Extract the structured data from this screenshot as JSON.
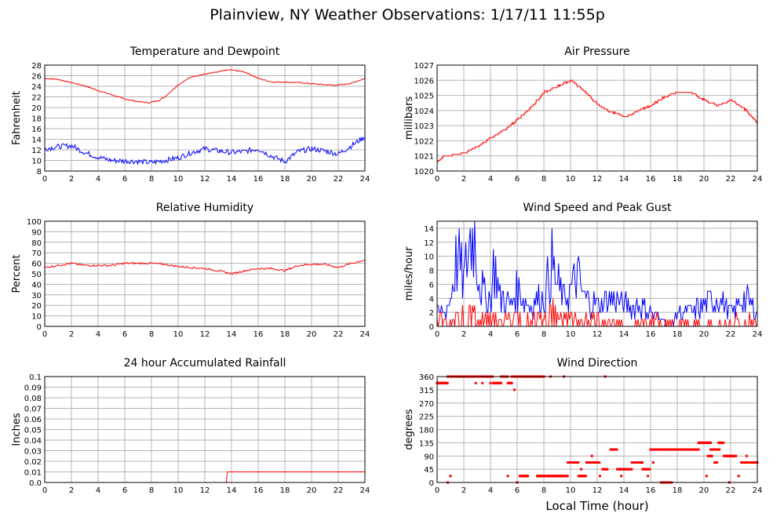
{
  "title": "Plainview, NY Weather Observations: 1/17/11 11:55p",
  "xlabel_bottom": "Local Time (hour)",
  "colors": {
    "red": "#ff0000",
    "blue": "#0000ff",
    "grid": "#b4b4b4",
    "frame": "#000000"
  },
  "chart_data": [
    {
      "id": "temp",
      "type": "line",
      "title": "Temperature and Dewpoint",
      "ylabel": "Fahrenheit",
      "xlim": [
        0,
        24
      ],
      "ylim": [
        8,
        28
      ],
      "xticks": [
        0,
        2,
        4,
        6,
        8,
        10,
        12,
        14,
        16,
        18,
        20,
        22,
        24
      ],
      "yticks": [
        8,
        10,
        12,
        14,
        16,
        18,
        20,
        22,
        24,
        26,
        28
      ],
      "series": [
        {
          "color": "#ff0000",
          "jitter": 0.1,
          "x": [
            0,
            1,
            2,
            3,
            4,
            5,
            6,
            7,
            7.8,
            8.5,
            9,
            10,
            11,
            12,
            13,
            13.5,
            14,
            15,
            16,
            17,
            18,
            19,
            20,
            21,
            22,
            23,
            24
          ],
          "y": [
            25.5,
            25.3,
            24.7,
            24.1,
            23.2,
            22.4,
            21.6,
            21.1,
            20.9,
            21.3,
            22.0,
            24.3,
            25.8,
            26.3,
            26.7,
            27.0,
            27.1,
            26.7,
            25.5,
            24.8,
            24.8,
            24.7,
            24.5,
            24.3,
            24.2,
            24.6,
            25.5
          ]
        },
        {
          "color": "#0000ff",
          "jitter": 0.5,
          "x": [
            0,
            1,
            2,
            3,
            4,
            5,
            6,
            7,
            8,
            9,
            10,
            11,
            12,
            13,
            14,
            15,
            16,
            17,
            18,
            19,
            20,
            21,
            22,
            23,
            24
          ],
          "y": [
            12.2,
            12.6,
            12.8,
            11.5,
            10.6,
            10.0,
            9.9,
            9.8,
            9.6,
            10.0,
            10.5,
            11.5,
            12.2,
            11.8,
            11.5,
            11.7,
            12.2,
            10.8,
            9.8,
            11.7,
            12.2,
            11.8,
            11.2,
            12.8,
            14.5
          ]
        }
      ]
    },
    {
      "id": "pressure",
      "type": "line",
      "title": "Air Pressure",
      "ylabel": "millibars",
      "xlim": [
        0,
        24
      ],
      "ylim": [
        1020,
        1027
      ],
      "xticks": [
        0,
        2,
        4,
        6,
        8,
        10,
        12,
        14,
        16,
        18,
        20,
        22,
        24
      ],
      "yticks": [
        1020,
        1021,
        1022,
        1023,
        1024,
        1025,
        1026,
        1027
      ],
      "series": [
        {
          "color": "#ff0000",
          "step": 0.1,
          "jitter": 0.05,
          "x": [
            0,
            0.5,
            1,
            2,
            3,
            4,
            5,
            6,
            7,
            8,
            9,
            10,
            11,
            12,
            13,
            14,
            14.5,
            15,
            16,
            17,
            18,
            19,
            20,
            21,
            22,
            23,
            24
          ],
          "y": [
            1020.6,
            1021.0,
            1021.0,
            1021.2,
            1021.6,
            1022.2,
            1022.7,
            1023.4,
            1024.2,
            1025.2,
            1025.6,
            1026.0,
            1025.3,
            1024.4,
            1023.9,
            1023.6,
            1023.7,
            1024.0,
            1024.3,
            1024.9,
            1025.2,
            1025.2,
            1024.7,
            1024.3,
            1024.7,
            1024.1,
            1023.2
          ]
        }
      ]
    },
    {
      "id": "humidity",
      "type": "line",
      "title": "Relative Humidity",
      "ylabel": "Percent",
      "xlim": [
        0,
        24
      ],
      "ylim": [
        0,
        100
      ],
      "xticks": [
        0,
        2,
        4,
        6,
        8,
        10,
        12,
        14,
        16,
        18,
        20,
        22,
        24
      ],
      "yticks": [
        0,
        10,
        20,
        30,
        40,
        50,
        60,
        70,
        80,
        90,
        100
      ],
      "series": [
        {
          "color": "#ff0000",
          "jitter": 0.9,
          "x": [
            0,
            1,
            2,
            3,
            4,
            5,
            6,
            7,
            8,
            9,
            10,
            11,
            12,
            13,
            14,
            15,
            16,
            17,
            18,
            19,
            20,
            21,
            22,
            23,
            24
          ],
          "y": [
            56,
            58,
            60,
            58,
            58,
            58,
            60,
            60,
            60,
            59,
            57,
            56,
            55,
            53,
            50,
            53,
            55,
            55,
            53,
            58,
            59,
            59,
            56,
            60,
            63
          ]
        }
      ]
    },
    {
      "id": "wind",
      "type": "line",
      "title": "Wind Speed and Peak Gust",
      "ylabel": "miles/hour",
      "xlim": [
        0,
        24
      ],
      "ylim": [
        0,
        15
      ],
      "xticks": [
        0,
        2,
        4,
        6,
        8,
        10,
        12,
        14,
        16,
        18,
        20,
        22,
        24
      ],
      "yticks": [
        0,
        2,
        4,
        6,
        8,
        10,
        12,
        14
      ],
      "series": [
        {
          "color": "#0000ff",
          "mode": "gust",
          "x": [
            0,
            0.5,
            1,
            1.5,
            2,
            2.5,
            2.8,
            3.2,
            3.6,
            4,
            4.3,
            4.7,
            5,
            5.5,
            6,
            7,
            7.5,
            8,
            8.6,
            9,
            9.5,
            10,
            10.5,
            11,
            12,
            13,
            14,
            15,
            16,
            17,
            17.5,
            18,
            19,
            20,
            21,
            22,
            23,
            24
          ],
          "y": [
            2,
            2,
            4,
            10,
            6,
            13,
            13,
            6,
            4,
            4,
            9,
            4,
            4,
            3,
            5,
            3,
            4,
            4,
            9,
            6,
            4,
            5,
            7,
            4,
            3,
            4,
            3,
            3,
            2,
            1,
            0,
            2,
            2,
            3,
            4,
            2,
            4,
            2
          ]
        },
        {
          "color": "#ff0000",
          "mode": "sustained",
          "x": [
            0,
            1,
            1.5,
            2,
            2.5,
            3,
            3.5,
            4,
            5,
            6,
            7,
            8,
            8.7,
            9,
            10,
            11,
            12,
            13,
            14,
            15,
            16,
            17,
            18,
            19,
            20,
            21,
            22,
            23,
            24
          ],
          "y": [
            1,
            0,
            1,
            2,
            3,
            1,
            1,
            1,
            1,
            1,
            1,
            1,
            4,
            1,
            1,
            1,
            1,
            0,
            0,
            0,
            1,
            0,
            0,
            0,
            0,
            1,
            0,
            1,
            1
          ]
        }
      ]
    },
    {
      "id": "rain",
      "type": "line",
      "title": "24 hour Accumulated Rainfall",
      "ylabel": "Inches",
      "xlim": [
        0,
        24
      ],
      "ylim": [
        0,
        0.1
      ],
      "xticks": [
        0,
        2,
        4,
        6,
        8,
        10,
        12,
        14,
        16,
        18,
        20,
        22,
        24
      ],
      "yticks": [
        0,
        0.01,
        0.02,
        0.03,
        0.04,
        0.05,
        0.06,
        0.07,
        0.08,
        0.09,
        0.1
      ],
      "yticklabels": [
        "0.0",
        "0.01",
        "0.02",
        "0.03",
        "0.04",
        "0.05",
        "0.06",
        "0.07",
        "0.08",
        "0.09",
        "0.1"
      ],
      "series": [
        {
          "color": "#ff0000",
          "x": [
            0,
            13.6,
            13.7,
            24
          ],
          "y": [
            0,
            0,
            0.01,
            0.01
          ]
        }
      ]
    },
    {
      "id": "direction",
      "type": "scatter",
      "title": "Wind Direction",
      "ylabel": "degrees",
      "xlabel": "Local Time (hour)",
      "xlim": [
        0,
        24
      ],
      "ylim": [
        0,
        360
      ],
      "xticks": [
        0,
        2,
        4,
        6,
        8,
        10,
        12,
        14,
        16,
        18,
        20,
        22,
        24
      ],
      "yticks": [
        0,
        45,
        90,
        135,
        180,
        225,
        270,
        315,
        360
      ],
      "series": [
        {
          "color": "#ff0000",
          "segments": [
            [
              0,
              0.8,
              338
            ],
            [
              0.8,
              4.2,
              360
            ],
            [
              4.2,
              4.8,
              338
            ],
            [
              4.8,
              5.3,
              360
            ],
            [
              5.3,
              5.6,
              338
            ],
            [
              5.6,
              7.2,
              360
            ],
            [
              7.2,
              8,
              360
            ],
            [
              6.2,
              6.8,
              22
            ],
            [
              7.5,
              9.8,
              22
            ],
            [
              9.8,
              10.6,
              68
            ],
            [
              10.6,
              11.2,
              22
            ],
            [
              11.2,
              12.2,
              68
            ],
            [
              12.4,
              12.8,
              45
            ],
            [
              13,
              13.5,
              112
            ],
            [
              13.5,
              14.6,
              45
            ],
            [
              14.6,
              15.4,
              68
            ],
            [
              15.4,
              16,
              45
            ],
            [
              16,
              19.6,
              112
            ],
            [
              19.6,
              20.5,
              135
            ],
            [
              20.5,
              21.2,
              112
            ],
            [
              21.1,
              21.5,
              135
            ],
            [
              21.5,
              22.4,
              90
            ],
            [
              22.8,
              24,
              68
            ],
            [
              16.8,
              17.6,
              0
            ],
            [
              20.3,
              20.6,
              90
            ],
            [
              20.8,
              21.0,
              68
            ]
          ],
          "scatter_x": [
            0.8,
            1.0,
            2.9,
            3.4,
            4.0,
            5.3,
            5.8,
            6.0,
            8.0,
            8.5,
            9.5,
            10.8,
            11.6,
            12.2,
            12.6,
            13.8,
            15.8,
            16.2,
            20.2,
            21.9,
            22.6,
            23.2
          ],
          "scatter_y": [
            0,
            22,
            338,
            338,
            338,
            22,
            315,
            0,
            360,
            360,
            360,
            45,
            90,
            22,
            360,
            22,
            22,
            68,
            22,
            0,
            22,
            90
          ]
        }
      ]
    }
  ]
}
